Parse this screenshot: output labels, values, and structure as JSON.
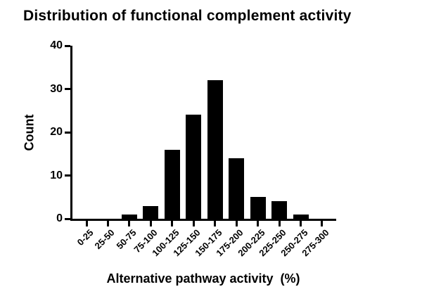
{
  "chart_data": {
    "type": "bar",
    "title": "Distribution of functional complement activity",
    "xlabel": "Alternative pathway activity  (%)",
    "ylabel": "Count",
    "categories": [
      "0-25",
      "25-50",
      "50-75",
      "75-100",
      "100-125",
      "125-150",
      "150-175",
      "175-200",
      "200-225",
      "225-250",
      "250-275",
      "275-300"
    ],
    "values": [
      0,
      0,
      1,
      3,
      16,
      24,
      32,
      14,
      5,
      4,
      1,
      0
    ],
    "ylim": [
      0,
      40
    ],
    "yticks": [
      0,
      10,
      20,
      30,
      40
    ],
    "grid": false,
    "legend": null,
    "bar_color": "#000000",
    "axis_color": "#000000",
    "background_color": "#ffffff",
    "x_tick_label_rotation_deg": 45
  }
}
